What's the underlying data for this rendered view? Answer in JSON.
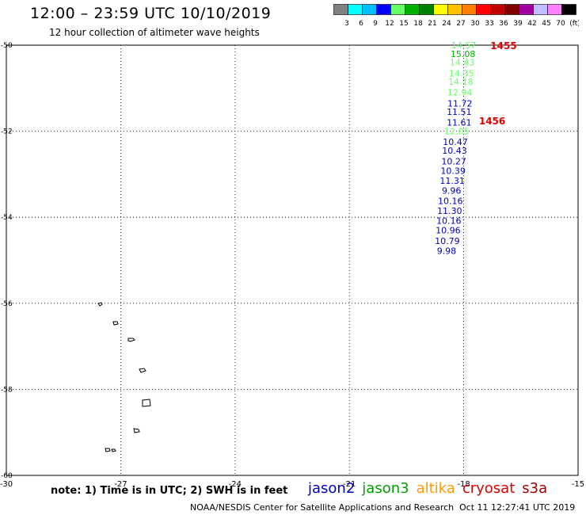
{
  "title": "12:00 – 23:59 UTC 10/10/2019",
  "subtitle": "12 hour collection of altimeter wave heights",
  "colorbar": {
    "colors": [
      "#808080",
      "#00ffff",
      "#00bfff",
      "#0000ff",
      "#66ff66",
      "#00b000",
      "#008000",
      "#ffff00",
      "#ffc000",
      "#ff8000",
      "#ff0000",
      "#c00000",
      "#800000",
      "#a000a0",
      "#c0c0ff",
      "#ff80ff",
      "#000000"
    ],
    "labels": [
      "3",
      "6",
      "9",
      "12",
      "15",
      "18",
      "21",
      "24",
      "27",
      "30",
      "33",
      "36",
      "39",
      "42",
      "45",
      "70",
      "(ft)"
    ]
  },
  "map": {
    "lon_labels": [
      "-30",
      "-27",
      "-24",
      "-21",
      "-18",
      "-15"
    ],
    "lat_labels": [
      "-50",
      "-52",
      "-54",
      "-56",
      "-58",
      "-60"
    ],
    "lon_values": [
      -30,
      -27,
      -24,
      -21,
      -18,
      -15
    ],
    "lat_values": [
      -50,
      -52,
      -54,
      -56,
      -58,
      -60
    ]
  },
  "observations": [
    {
      "value": "14.57",
      "color": "#66ff66",
      "lon": -18.0,
      "lat": -50.0
    },
    {
      "value": "15.08",
      "color": "#00b000",
      "lon": -18.02,
      "lat": -50.2
    },
    {
      "value": "14.43",
      "color": "#66ff66",
      "lon": -18.04,
      "lat": -50.4
    },
    {
      "value": "14.35",
      "color": "#66ff66",
      "lon": -18.06,
      "lat": -50.65
    },
    {
      "value": "14.18",
      "color": "#66ff66",
      "lon": -18.08,
      "lat": -50.85
    },
    {
      "value": "12.94",
      "color": "#66ff66",
      "lon": -18.1,
      "lat": -51.1
    },
    {
      "value": "11.72",
      "color": "#0000c0",
      "lon": -18.1,
      "lat": -51.35
    },
    {
      "value": "11.51",
      "color": "#0000c0",
      "lon": -18.12,
      "lat": -51.55
    },
    {
      "value": "11.61",
      "color": "#0000c0",
      "lon": -18.12,
      "lat": -51.8
    },
    {
      "value": "12.05",
      "color": "#66ff66",
      "lon": -18.18,
      "lat": -52.0
    },
    {
      "value": "10.47",
      "color": "#0000c0",
      "lon": -18.22,
      "lat": -52.25
    },
    {
      "value": "10.43",
      "color": "#0000c0",
      "lon": -18.24,
      "lat": -52.45
    },
    {
      "value": "10.27",
      "color": "#0000c0",
      "lon": -18.26,
      "lat": -52.7
    },
    {
      "value": "10.39",
      "color": "#0000c0",
      "lon": -18.28,
      "lat": -52.92
    },
    {
      "value": "11.31",
      "color": "#0000c0",
      "lon": -18.3,
      "lat": -53.15
    },
    {
      "value": "9.96",
      "color": "#0000c0",
      "lon": -18.32,
      "lat": -53.38
    },
    {
      "value": "10.16",
      "color": "#0000c0",
      "lon": -18.35,
      "lat": -53.62
    },
    {
      "value": "11.30",
      "color": "#0000c0",
      "lon": -18.37,
      "lat": -53.85
    },
    {
      "value": "10.16",
      "color": "#0000c0",
      "lon": -18.39,
      "lat": -54.08
    },
    {
      "value": "10.96",
      "color": "#0000c0",
      "lon": -18.41,
      "lat": -54.3
    },
    {
      "value": "10.79",
      "color": "#0000c0",
      "lon": -18.43,
      "lat": -54.55
    },
    {
      "value": "9.98",
      "color": "#0000c0",
      "lon": -18.45,
      "lat": -54.78
    }
  ],
  "time_labels": [
    {
      "value": "1455",
      "lon": -17.3,
      "lat": -50.0
    },
    {
      "value": "1456",
      "lon": -17.6,
      "lat": -51.75
    }
  ],
  "note": "note: 1) Time is in UTC; 2) SWH is in feet",
  "satellites": [
    {
      "name": "jason2",
      "color": "#0000c0"
    },
    {
      "name": "jason3",
      "color": "#00a000"
    },
    {
      "name": "altika",
      "color": "#ff9900"
    },
    {
      "name": "cryosat",
      "color": "#dd0000"
    },
    {
      "name": "s3a",
      "color": "#a00000"
    }
  ],
  "footer": {
    "center": "NOAA/NESDIS Center for Satellite Applications and Research",
    "date": "Oct 11 12:27:41 UTC 2019"
  }
}
